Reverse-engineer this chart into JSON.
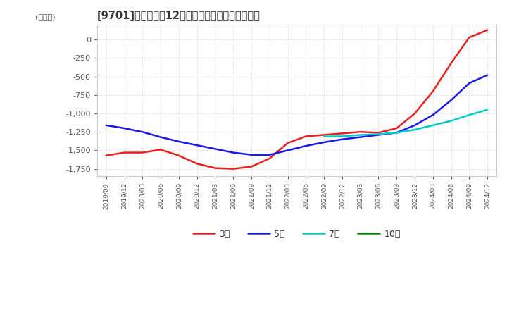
{
  "title": "[9701]　経常利益12か月移動合計の平均値の推移",
  "ylabel": "(百万円)",
  "ylim": [
    -1850,
    200
  ],
  "yticks": [
    0,
    -250,
    -500,
    -750,
    -1000,
    -1250,
    -1500,
    -1750
  ],
  "bg_color": "#ffffff",
  "plot_bg_color": "#ffffff",
  "grid_color": "#cccccc",
  "title_color": "#333333",
  "tick_color": "#555555",
  "line_colors": {
    "3年": "#e82020",
    "5年": "#1a1aee",
    "7年": "#00cccc",
    "10年": "#008800"
  },
  "legend_labels": [
    "3年",
    "5年",
    "7年",
    "10年"
  ],
  "x_labels": [
    "2019/09",
    "2019/12",
    "2020/03",
    "2020/06",
    "2020/09",
    "2020/12",
    "2021/03",
    "2021/06",
    "2021/09",
    "2021/12",
    "2022/03",
    "2022/06",
    "2022/09",
    "2022/12",
    "2023/03",
    "2023/06",
    "2023/09",
    "2023/12",
    "2024/03",
    "2024/06",
    "2024/09",
    "2024/12"
  ],
  "data_3y": [
    -1570,
    -1530,
    -1530,
    -1490,
    -1570,
    -1680,
    -1740,
    -1750,
    -1720,
    -1610,
    -1400,
    -1310,
    -1290,
    -1270,
    -1250,
    -1260,
    -1200,
    -1000,
    -700,
    -320,
    30,
    130
  ],
  "data_5y": [
    -1160,
    -1200,
    -1250,
    -1320,
    -1380,
    -1430,
    -1480,
    -1530,
    -1560,
    -1560,
    -1500,
    -1440,
    -1390,
    -1350,
    -1320,
    -1290,
    -1260,
    -1160,
    -1020,
    -820,
    -590,
    -480
  ],
  "data_7y": [
    null,
    null,
    null,
    null,
    null,
    null,
    null,
    null,
    null,
    null,
    null,
    null,
    -1310,
    -1310,
    -1290,
    -1280,
    -1260,
    -1220,
    -1160,
    -1100,
    -1020,
    -950
  ],
  "data_10y": [
    null,
    null,
    null,
    null,
    null,
    null,
    null,
    null,
    null,
    null,
    null,
    null,
    null,
    null,
    null,
    null,
    null,
    null,
    null,
    null,
    null,
    null
  ],
  "linewidth": 1.8
}
